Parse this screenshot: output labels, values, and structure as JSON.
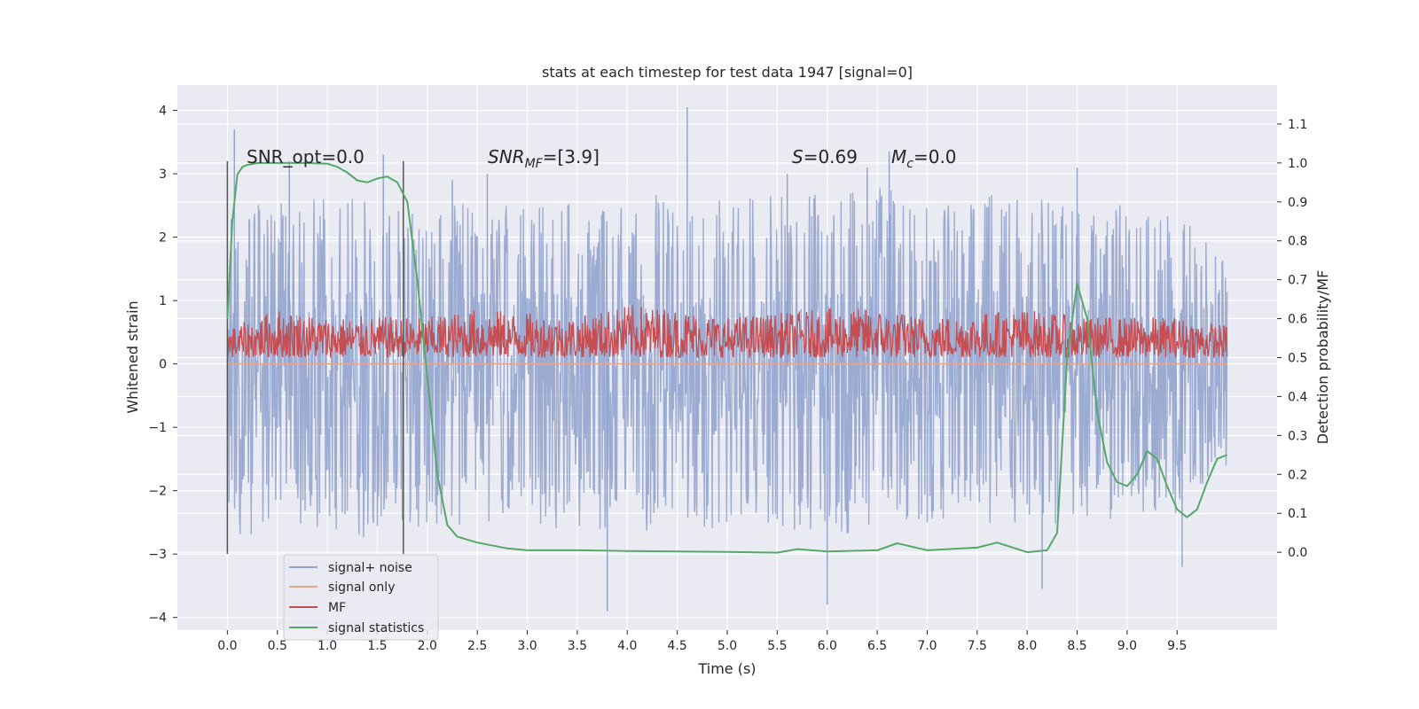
{
  "chart_data": {
    "type": "line",
    "title": "stats at each timestep for test data 1947 [signal=0]",
    "xlabel": "Time (s)",
    "ylabel": "Whitened strain",
    "y2label": "Detection probability/MF",
    "xlim": [
      -0.5,
      10.5
    ],
    "ylim": [
      -4.2,
      4.4
    ],
    "y2lim": [
      -0.2,
      1.2
    ],
    "x_ticks": [
      0.0,
      0.5,
      1.0,
      1.5,
      2.0,
      2.5,
      3.0,
      3.5,
      4.0,
      4.5,
      5.0,
      5.5,
      6.0,
      6.5,
      7.0,
      7.5,
      8.0,
      8.5,
      9.0,
      9.5
    ],
    "x_tick_labels": [
      "0.0",
      "0.5",
      "1.0",
      "1.5",
      "2.0",
      "2.5",
      "3.0",
      "3.5",
      "4.0",
      "4.5",
      "5.0",
      "5.5",
      "6.0",
      "6.5",
      "7.0",
      "7.5",
      "8.0",
      "8.5",
      "9.0",
      "9.5"
    ],
    "y_ticks": [
      4,
      3,
      2,
      1,
      0,
      -1,
      -2,
      -3,
      -4
    ],
    "y_tick_labels": [
      "4",
      "3",
      "2",
      "1",
      "0",
      "−1",
      "−2",
      "−3",
      "−4"
    ],
    "y2_ticks": [
      1.1,
      1.0,
      0.9,
      0.8,
      0.7,
      0.6,
      0.5,
      0.4,
      0.3,
      0.2,
      0.1,
      0.0
    ],
    "y2_tick_labels": [
      "1.1",
      "1.0",
      "0.9",
      "0.8",
      "0.7",
      "0.6",
      "0.5",
      "0.4",
      "0.3",
      "0.2",
      "0.1",
      "0.0"
    ],
    "grid": true,
    "legend_position": "lower-left",
    "annotations": {
      "snr_opt": "SNR_opt=0.0",
      "snr_mf_base": "SNR",
      "snr_mf_sub": "MF",
      "snr_mf_rest": "=[3.9]",
      "s_name": "S",
      "s_value": "=0.69",
      "mc_base": "M",
      "mc_sub": "c",
      "mc_value": "=0.0"
    },
    "vertical_markers": [
      0.0,
      1.76
    ],
    "series": [
      {
        "name": "signal+ noise",
        "color": "#8da0cb",
        "axis": "left",
        "spikes": [
          [
            0.07,
            3.7
          ],
          [
            0.62,
            3.2
          ],
          [
            1.56,
            3.3
          ],
          [
            2.25,
            2.9
          ],
          [
            2.6,
            3.0
          ],
          [
            3.8,
            -3.9
          ],
          [
            4.6,
            4.05
          ],
          [
            5.6,
            3.0
          ],
          [
            6.0,
            -3.8
          ],
          [
            6.4,
            3.1
          ],
          [
            6.62,
            3.35
          ],
          [
            8.15,
            -3.55
          ],
          [
            8.5,
            3.1
          ],
          [
            9.55,
            -3.2
          ]
        ],
        "envelope": [
          [
            0.0,
            2.5,
            -2.8
          ],
          [
            0.5,
            2.6,
            -2.6
          ],
          [
            1.0,
            2.7,
            -2.7
          ],
          [
            1.5,
            2.6,
            -2.8
          ],
          [
            2.0,
            2.4,
            -2.6
          ],
          [
            2.5,
            2.6,
            -2.5
          ],
          [
            3.0,
            2.5,
            -2.6
          ],
          [
            3.5,
            2.6,
            -2.6
          ],
          [
            4.0,
            2.5,
            -2.7
          ],
          [
            4.5,
            2.8,
            -2.6
          ],
          [
            5.0,
            2.6,
            -2.6
          ],
          [
            5.5,
            2.7,
            -2.6
          ],
          [
            6.0,
            2.7,
            -2.8
          ],
          [
            6.5,
            2.8,
            -2.5
          ],
          [
            7.0,
            2.6,
            -2.5
          ],
          [
            7.5,
            2.7,
            -2.5
          ],
          [
            8.0,
            2.6,
            -2.6
          ],
          [
            8.5,
            2.6,
            -2.5
          ],
          [
            9.0,
            2.5,
            -2.5
          ],
          [
            9.5,
            2.4,
            -2.4
          ],
          [
            10.0,
            1.6,
            -1.6
          ]
        ]
      },
      {
        "name": "signal only",
        "color": "#e8a58d",
        "axis": "left",
        "x": [
          0.0,
          10.0
        ],
        "y": [
          0.0,
          0.0
        ]
      },
      {
        "name": "MF",
        "color": "#c44e52",
        "axis": "right",
        "band": [
          [
            0.0,
            0.57,
            0.5
          ],
          [
            0.5,
            0.62,
            0.5
          ],
          [
            1.0,
            0.6,
            0.5
          ],
          [
            1.5,
            0.6,
            0.5
          ],
          [
            2.0,
            0.6,
            0.5
          ],
          [
            2.5,
            0.62,
            0.5
          ],
          [
            3.0,
            0.61,
            0.5
          ],
          [
            3.5,
            0.6,
            0.5
          ],
          [
            4.0,
            0.63,
            0.5
          ],
          [
            4.5,
            0.62,
            0.5
          ],
          [
            5.0,
            0.6,
            0.5
          ],
          [
            5.5,
            0.61,
            0.5
          ],
          [
            6.0,
            0.62,
            0.5
          ],
          [
            6.5,
            0.62,
            0.5
          ],
          [
            7.0,
            0.6,
            0.5
          ],
          [
            7.5,
            0.61,
            0.5
          ],
          [
            8.0,
            0.62,
            0.5
          ],
          [
            8.5,
            0.6,
            0.5
          ],
          [
            9.0,
            0.6,
            0.5
          ],
          [
            9.5,
            0.6,
            0.5
          ],
          [
            10.0,
            0.58,
            0.5
          ]
        ]
      },
      {
        "name": "signal statistics",
        "color": "#55a868",
        "axis": "right",
        "x": [
          0.0,
          0.05,
          0.1,
          0.15,
          0.2,
          0.3,
          0.5,
          0.8,
          1.0,
          1.1,
          1.2,
          1.3,
          1.4,
          1.5,
          1.6,
          1.7,
          1.8,
          1.9,
          2.0,
          2.1,
          2.2,
          2.3,
          2.5,
          2.8,
          3.0,
          3.5,
          4.0,
          4.5,
          5.0,
          5.5,
          5.7,
          6.0,
          6.5,
          6.7,
          7.0,
          7.5,
          7.7,
          8.0,
          8.2,
          8.3,
          8.4,
          8.5,
          8.6,
          8.7,
          8.8,
          8.9,
          9.0,
          9.1,
          9.2,
          9.3,
          9.4,
          9.5,
          9.6,
          9.7,
          9.8,
          9.9,
          10.0
        ],
        "y": [
          0.6,
          0.85,
          0.97,
          0.99,
          0.995,
          1.0,
          1.0,
          1.0,
          0.998,
          0.99,
          0.975,
          0.955,
          0.95,
          0.96,
          0.965,
          0.95,
          0.9,
          0.7,
          0.45,
          0.2,
          0.07,
          0.04,
          0.025,
          0.01,
          0.005,
          0.005,
          0.003,
          0.002,
          0.001,
          -0.001,
          0.008,
          0.002,
          0.005,
          0.023,
          0.005,
          0.012,
          0.025,
          0.0,
          0.005,
          0.05,
          0.5,
          0.69,
          0.6,
          0.36,
          0.23,
          0.18,
          0.17,
          0.2,
          0.26,
          0.24,
          0.17,
          0.11,
          0.09,
          0.11,
          0.18,
          0.24,
          0.25
        ]
      }
    ]
  }
}
